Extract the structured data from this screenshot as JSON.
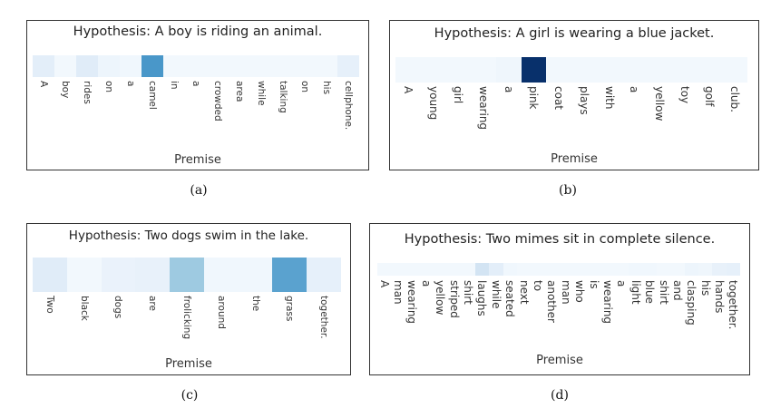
{
  "panels": [
    {
      "caption": "(a)",
      "hypothesis": "Hypothesis: A boy is riding an animal.",
      "xlabel": "Premise",
      "tokens": [
        "A",
        "boy",
        "rides",
        "on",
        "a",
        "camel",
        "in",
        "a",
        "crowded",
        "area",
        "while",
        "talking",
        "on",
        "his",
        "cellphone."
      ],
      "weights": [
        0.12,
        0.03,
        0.14,
        0.06,
        0.04,
        0.7,
        0.03,
        0.03,
        0.03,
        0.03,
        0.03,
        0.03,
        0.03,
        0.03,
        0.1
      ]
    },
    {
      "caption": "(b)",
      "hypothesis": "Hypothesis: A girl is wearing a blue jacket.",
      "xlabel": "Premise",
      "tokens": [
        "A",
        "young",
        "girl",
        "wearing",
        "a",
        "pink",
        "coat",
        "plays",
        "with",
        "a",
        "yellow",
        "toy",
        "golf",
        "club."
      ],
      "weights": [
        0.03,
        0.03,
        0.03,
        0.03,
        0.05,
        1.0,
        0.03,
        0.03,
        0.03,
        0.03,
        0.03,
        0.03,
        0.03,
        0.03
      ]
    },
    {
      "caption": "(c)",
      "hypothesis": "Hypothesis: Two dogs swim in the lake.",
      "xlabel": "Premise",
      "tokens": [
        "Two",
        "black",
        "dogs",
        "are",
        "frolicking",
        "around",
        "the",
        "grass",
        "together."
      ],
      "weights": [
        0.14,
        0.03,
        0.08,
        0.09,
        0.45,
        0.04,
        0.04,
        0.65,
        0.1
      ]
    },
    {
      "caption": "(d)",
      "hypothesis": "Hypothesis: Two mimes sit in complete silence.",
      "xlabel": "Premise",
      "tokens": [
        "A",
        "man",
        "wearing",
        "a",
        "yellow",
        "striped",
        "shirt",
        "laughs",
        "while",
        "seated",
        "next",
        "to",
        "another",
        "man",
        "who",
        "is",
        "wearing",
        "a",
        "light",
        "blue",
        "shirt",
        "and",
        "clasping",
        "his",
        "hands",
        "together."
      ],
      "weights": [
        0.03,
        0.03,
        0.03,
        0.03,
        0.03,
        0.03,
        0.03,
        0.22,
        0.12,
        0.04,
        0.03,
        0.03,
        0.03,
        0.03,
        0.03,
        0.03,
        0.03,
        0.03,
        0.04,
        0.04,
        0.03,
        0.03,
        0.06,
        0.05,
        0.09,
        0.1
      ]
    }
  ]
}
